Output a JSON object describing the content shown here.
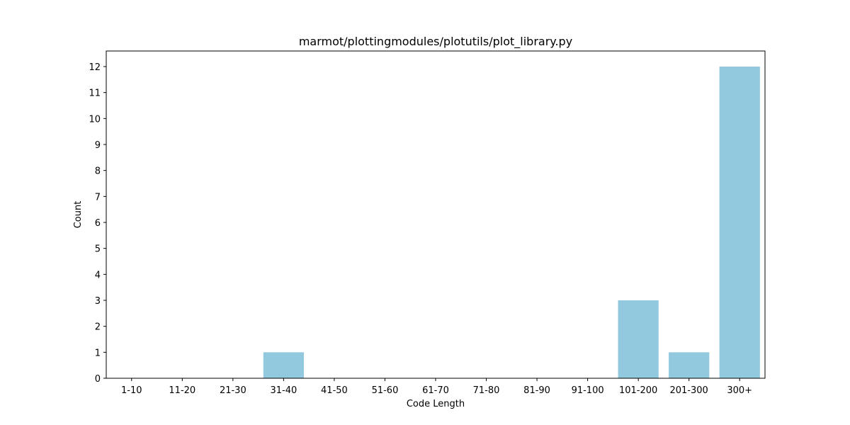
{
  "chart_data": {
    "type": "bar",
    "title": "marmot/plottingmodules/plotutils/plot_library.py",
    "xlabel": "Code Length",
    "ylabel": "Count",
    "categories": [
      "1-10",
      "11-20",
      "21-30",
      "31-40",
      "41-50",
      "51-60",
      "61-70",
      "71-80",
      "81-90",
      "91-100",
      "101-200",
      "201-300",
      "300+"
    ],
    "values": [
      0,
      0,
      0,
      1,
      0,
      0,
      0,
      0,
      0,
      0,
      3,
      1,
      12
    ],
    "ylim": [
      0,
      12.6
    ],
    "yticks": [
      0,
      1,
      2,
      3,
      4,
      5,
      6,
      7,
      8,
      9,
      10,
      11,
      12
    ],
    "bar_color": "#92c9de",
    "grid": false,
    "legend": "none"
  }
}
